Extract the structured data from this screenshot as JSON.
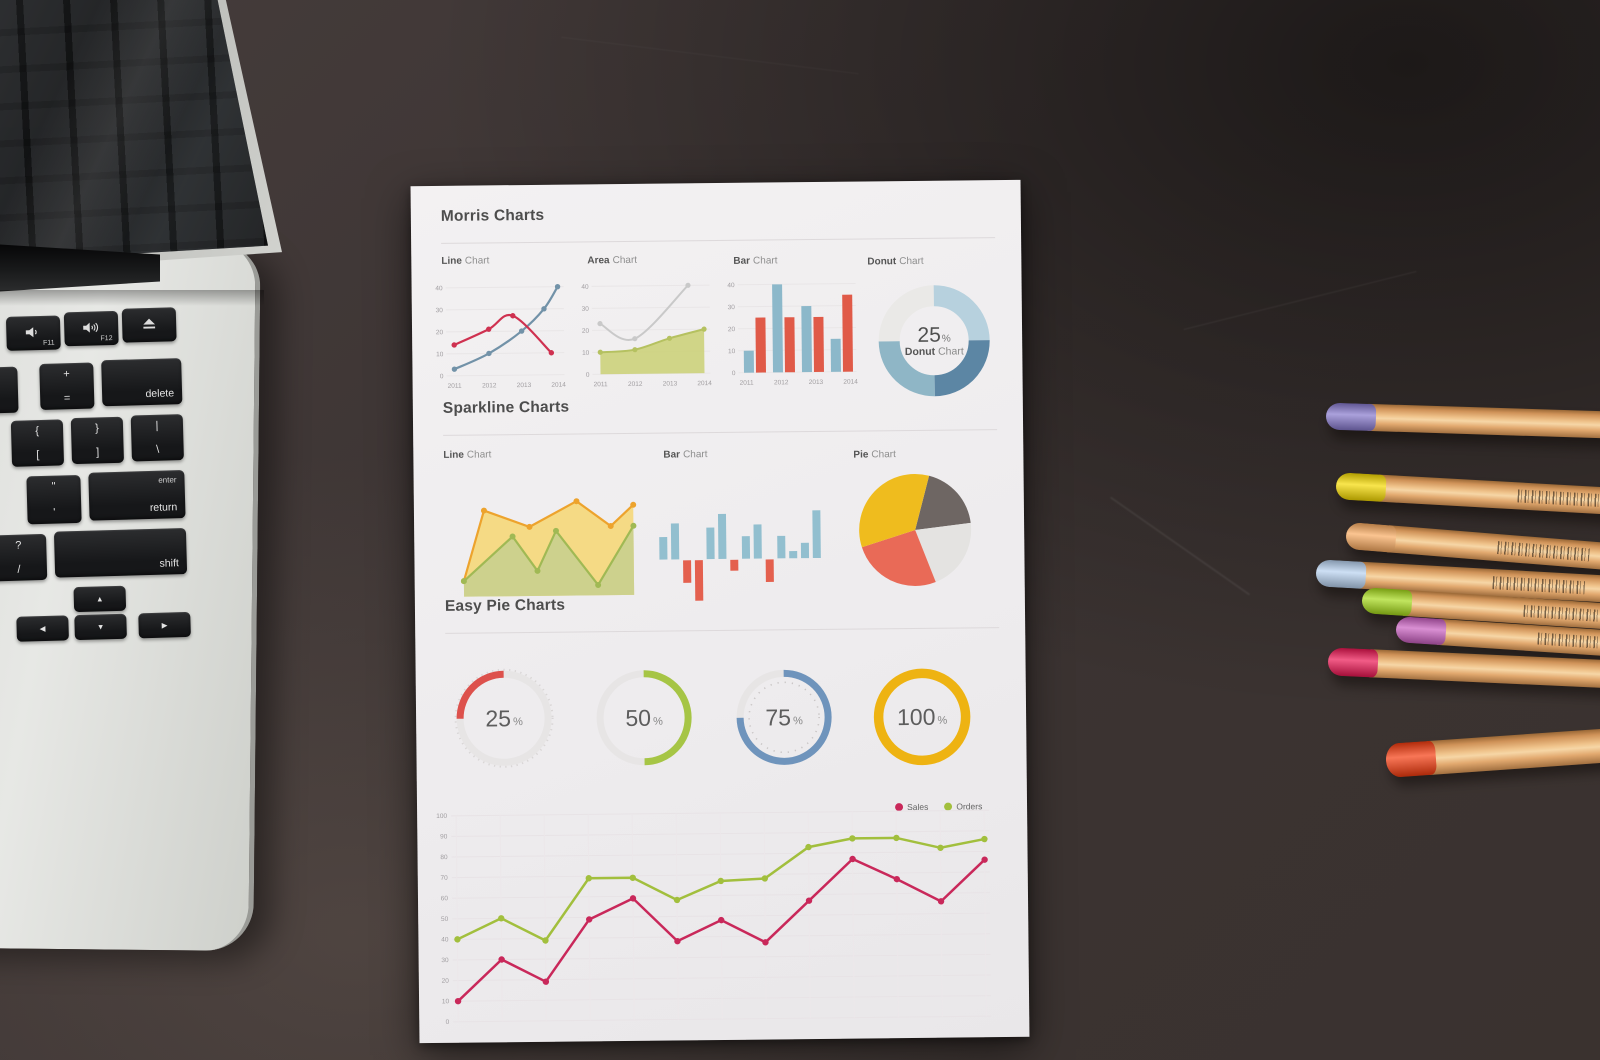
{
  "paper": {
    "sections": [
      {
        "heading": "Morris Charts",
        "charts": [
          {
            "title_bold": "Line",
            "title_rest": "Chart"
          },
          {
            "title_bold": "Area",
            "title_rest": "Chart"
          },
          {
            "title_bold": "Bar",
            "title_rest": "Chart"
          },
          {
            "title_bold": "Donut",
            "title_rest": "Chart"
          }
        ]
      },
      {
        "heading": "Sparkline Charts",
        "charts": [
          {
            "title_bold": "Line",
            "title_rest": "Chart"
          },
          {
            "title_bold": "Bar",
            "title_rest": "Chart"
          },
          {
            "title_bold": "Pie",
            "title_rest": "Chart"
          }
        ]
      },
      {
        "heading": "Easy Pie Charts",
        "charts": []
      }
    ],
    "legend": [
      {
        "label": "Sales",
        "color": "#c9285a"
      },
      {
        "label": "Orders",
        "color": "#a2bf3d"
      }
    ]
  },
  "chart_data": [
    {
      "id": "morris_line",
      "type": "line",
      "title": "Line Chart",
      "x_labels": [
        "2011",
        "2012",
        "2013",
        "2014"
      ],
      "y_ticks": [
        0,
        10,
        20,
        30,
        40
      ],
      "ylim": [
        0,
        40
      ],
      "series": [
        {
          "name": "series-a",
          "color": "#7292a8",
          "points": [
            [
              0,
              3
            ],
            [
              1,
              10
            ],
            [
              1.95,
              20
            ],
            [
              2.6,
              30
            ],
            [
              3,
              40
            ]
          ]
        },
        {
          "name": "series-b",
          "color": "#cf3150",
          "points": [
            [
              0,
              14
            ],
            [
              1,
              21
            ],
            [
              1.7,
              27
            ],
            [
              2.8,
              10
            ]
          ]
        }
      ]
    },
    {
      "id": "morris_area",
      "type": "area",
      "title": "Area Chart",
      "x_labels": [
        "2011",
        "2012",
        "2013",
        "2014"
      ],
      "y_ticks": [
        0,
        10,
        20,
        30,
        40
      ],
      "ylim": [
        0,
        40
      ],
      "series": [
        {
          "name": "gray-line",
          "color": "#c9c9c9",
          "fill": "none",
          "points": [
            [
              0,
              23
            ],
            [
              1,
              16
            ],
            [
              2.55,
              40
            ]
          ]
        },
        {
          "name": "green-area",
          "color": "#b5c160",
          "fill": "#cdd381",
          "points": [
            [
              0,
              10
            ],
            [
              1,
              11
            ],
            [
              2,
              16
            ],
            [
              3,
              20
            ]
          ]
        }
      ]
    },
    {
      "id": "morris_bar",
      "type": "bar",
      "title": "Bar Chart",
      "categories": [
        "2011",
        "2012",
        "2013",
        "2014"
      ],
      "y_ticks": [
        0,
        10,
        20,
        30,
        40
      ],
      "ylim": [
        0,
        40
      ],
      "series": [
        {
          "name": "series-a",
          "color": "#8cb8ca",
          "values": [
            10,
            40,
            30,
            15
          ]
        },
        {
          "name": "series-b",
          "color": "#e05a48",
          "values": [
            25,
            25,
            25,
            35
          ]
        }
      ]
    },
    {
      "id": "morris_donut",
      "type": "donut",
      "title": "Donut Chart",
      "center_value": "25",
      "center_unit": "%",
      "center_label_bold": "Donut",
      "center_label_rest": "Chart",
      "slices": [
        {
          "value": 25,
          "color": "#b7d1de"
        },
        {
          "value": 25,
          "color": "#5c86a4"
        },
        {
          "value": 25,
          "color": "#8fb6c6"
        },
        {
          "value": 25,
          "color": "#eae9e7"
        }
      ]
    },
    {
      "id": "spark_line",
      "type": "area",
      "title": "Line Chart",
      "series": [
        {
          "name": "yellow",
          "color": "#eda32d",
          "fill": "#f5d87c",
          "points": [
            [
              0.07,
              0.11
            ],
            [
              0.18,
              0.78
            ],
            [
              0.42,
              0.62
            ],
            [
              0.67,
              0.86
            ],
            [
              0.85,
              0.62
            ],
            [
              0.97,
              0.82
            ]
          ]
        },
        {
          "name": "green",
          "color": "#a0b954",
          "fill": "#c9d08e",
          "points": [
            [
              0.07,
              0.11
            ],
            [
              0.33,
              0.53
            ],
            [
              0.46,
              0.2
            ],
            [
              0.56,
              0.58
            ],
            [
              0.78,
              0.06
            ],
            [
              0.97,
              0.62
            ]
          ]
        }
      ]
    },
    {
      "id": "spark_bar",
      "type": "bar",
      "title": "Bar Chart",
      "pos_color": "#92bfcf",
      "neg_color": "#e4604e",
      "values": [
        2.5,
        4,
        -2.5,
        -4.5,
        3.5,
        5,
        -1.2,
        2.5,
        3.8,
        -2.5,
        2.5,
        0.8,
        1.7,
        5.3
      ]
    },
    {
      "id": "spark_pie",
      "type": "pie",
      "title": "Pie Chart",
      "start_angle": 15,
      "slices": [
        {
          "value": 19,
          "color": "#6e6663"
        },
        {
          "value": 21,
          "color": "#e4e3e1"
        },
        {
          "value": 26,
          "color": "#e96a57"
        },
        {
          "value": 34,
          "color": "#efbc1e"
        }
      ]
    },
    {
      "id": "easy_pies",
      "type": "gauge-group",
      "title": "Easy Pie Charts",
      "items": [
        {
          "value": "25",
          "unit": "%",
          "color": "#dd514c",
          "ccw": true,
          "outer_ticks": true
        },
        {
          "value": "50",
          "unit": "%",
          "color": "#a6c545"
        },
        {
          "value": "75",
          "unit": "%",
          "color": "#6f94bc",
          "inner_ticks": true
        },
        {
          "value": "100",
          "unit": "%",
          "color": "#eeb312",
          "full": true
        }
      ]
    },
    {
      "id": "big_line",
      "type": "line",
      "y_ticks": [
        0,
        10,
        20,
        30,
        40,
        50,
        60,
        70,
        80,
        90,
        100
      ],
      "ylim": [
        0,
        100
      ],
      "legend_position": "top-right",
      "grid": true,
      "series": [
        {
          "name": "Sales",
          "color": "#c9285a",
          "values": [
            10,
            30,
            19,
            49,
            59,
            38,
            48,
            37,
            57,
            77,
            67,
            56,
            76
          ]
        },
        {
          "name": "Orders",
          "color": "#a2bf3d",
          "values": [
            40,
            50,
            39,
            69,
            69,
            58,
            67,
            68,
            83,
            87,
            87,
            82,
            86
          ]
        }
      ]
    }
  ],
  "keyboard": {
    "f11": "F11",
    "f12": "F12",
    "delete": "delete",
    "enter": "enter",
    "return": "return",
    "shift": "shift",
    "plus": {
      "top": "+",
      "bottom": "="
    },
    "minus": {
      "top": "_",
      "bottom": "-"
    },
    "brace_l": {
      "top": "{",
      "bottom": "["
    },
    "brace_r": {
      "top": "}",
      "bottom": "]"
    },
    "pipe": {
      "top": "|",
      "bottom": "\\"
    },
    "quote": {
      "top": "\"",
      "bottom": "'"
    },
    "question": {
      "top": "?",
      "bottom": "/"
    },
    "arrow_up": "▲",
    "arrow_down": "▼",
    "arrow_left": "◀",
    "arrow_right": "▶"
  },
  "pencils": {
    "tip_colors": [
      "#8678cc",
      "#f6da00",
      "#f9ab61",
      "#b8d2f0",
      "#a6da1a",
      "#c95fc0",
      "#ec1653",
      "#f53b0e"
    ]
  }
}
